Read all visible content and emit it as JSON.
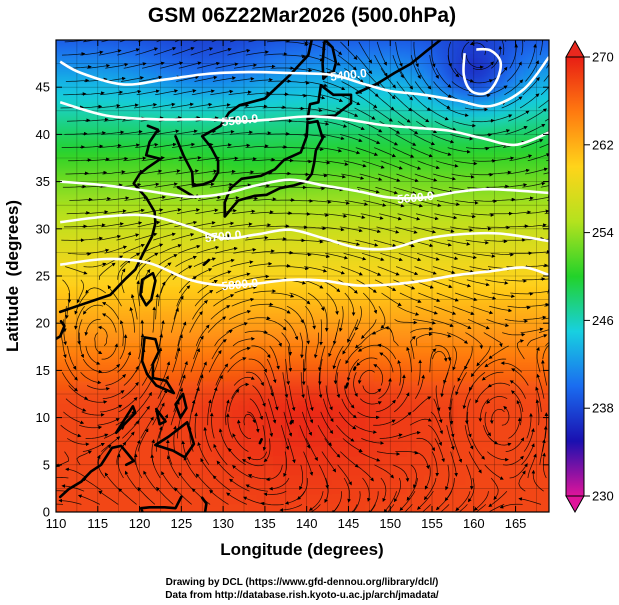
{
  "chart_data": {
    "type": "heatmap",
    "title": "GSM 06Z22Mar2026 (500.0hPa)",
    "xlabel": "Longitude (degrees)",
    "ylabel": "Latitude  (degrees)",
    "xlim": [
      110,
      169
    ],
    "ylim": [
      0,
      50
    ],
    "xticks": [
      110,
      115,
      120,
      125,
      130,
      135,
      140,
      145,
      150,
      155,
      160,
      165
    ],
    "yticks": [
      0,
      5,
      10,
      15,
      20,
      25,
      30,
      35,
      40,
      45
    ],
    "field": "temperature (K)",
    "colorbar": {
      "min": 230,
      "max": 270,
      "ticks": [
        230,
        238,
        246,
        254,
        262,
        270
      ],
      "colors": [
        "#e0149a",
        "#1a10b0",
        "#1a6cf0",
        "#18d0e0",
        "#22d22a",
        "#b4e21e",
        "#ffd41a",
        "#ff7a10",
        "#e81e14"
      ]
    },
    "contour_labels": [
      "5400.0",
      "5500.0",
      "5600.0",
      "5700.0",
      "5800.0"
    ],
    "height_contours": [
      {
        "level": 5400,
        "points": [
          [
            110.5,
            47.7
          ],
          [
            113,
            46.5
          ],
          [
            118,
            45.3
          ],
          [
            123,
            45.8
          ],
          [
            128,
            46.4
          ],
          [
            133,
            46.6
          ],
          [
            138,
            46.5
          ],
          [
            143,
            46.3
          ],
          [
            147,
            45.3
          ],
          [
            150,
            44.6
          ],
          [
            154,
            44.2
          ],
          [
            158,
            43.6
          ],
          [
            162,
            43.0
          ],
          [
            166,
            44.8
          ],
          [
            169,
            48.2
          ]
        ]
      },
      {
        "level": 5400,
        "points": [
          [
            158.9,
            48.6
          ],
          [
            158.8,
            46.3
          ],
          [
            159.7,
            44.6
          ],
          [
            161.5,
            44.4
          ],
          [
            162.8,
            45.8
          ],
          [
            163.2,
            47.7
          ],
          [
            162.0,
            48.9
          ],
          [
            160.3,
            49.0
          ]
        ]
      },
      {
        "level": 5500,
        "points": [
          [
            110.5,
            43.4
          ],
          [
            116,
            42.0
          ],
          [
            122,
            41.6
          ],
          [
            128,
            41.6
          ],
          [
            132,
            41.4
          ],
          [
            136,
            41.6
          ],
          [
            140,
            41.9
          ],
          [
            144,
            41.7
          ],
          [
            149,
            41.0
          ],
          [
            153,
            40.7
          ],
          [
            157,
            40.4
          ],
          [
            161,
            39.6
          ],
          [
            165,
            38.9
          ],
          [
            169,
            40.2
          ]
        ]
      },
      {
        "level": 5600,
        "points": [
          [
            110.5,
            35.0
          ],
          [
            116,
            34.6
          ],
          [
            121,
            34.0
          ],
          [
            126,
            33.4
          ],
          [
            130,
            33.7
          ],
          [
            134,
            34.6
          ],
          [
            138,
            35.2
          ],
          [
            142,
            34.6
          ],
          [
            146,
            34.0
          ],
          [
            150,
            33.3
          ],
          [
            154,
            33.3
          ],
          [
            158,
            33.9
          ],
          [
            162,
            34.2
          ],
          [
            169,
            33.8
          ]
        ]
      },
      {
        "level": 5700,
        "points": [
          [
            110.5,
            30.7
          ],
          [
            116,
            31.3
          ],
          [
            121,
            31.4
          ],
          [
            126,
            30.2
          ],
          [
            130,
            29.0
          ],
          [
            134,
            29.4
          ],
          [
            138,
            29.9
          ],
          [
            142,
            29.0
          ],
          [
            146,
            28.0
          ],
          [
            150,
            27.9
          ],
          [
            154,
            28.9
          ],
          [
            158,
            29.4
          ],
          [
            163,
            29.5
          ],
          [
            169,
            28.7
          ]
        ]
      },
      {
        "level": 5800,
        "points": [
          [
            110.5,
            26.2
          ],
          [
            116,
            26.8
          ],
          [
            121,
            26.4
          ],
          [
            126,
            24.6
          ],
          [
            130,
            24.0
          ],
          [
            134,
            24.2
          ],
          [
            138,
            24.6
          ],
          [
            142,
            24.5
          ],
          [
            146,
            24.0
          ],
          [
            150,
            24.1
          ],
          [
            154,
            24.5
          ],
          [
            158,
            25.1
          ],
          [
            162,
            25.5
          ],
          [
            166,
            25.9
          ],
          [
            169,
            25.1
          ]
        ]
      }
    ]
  },
  "footer": {
    "line1": "Drawing by DCL (https://www.gfd-dennou.org/library/dcl/)",
    "line2": "Data from http://database.rish.kyoto-u.ac.jp/arch/jmadata/"
  }
}
